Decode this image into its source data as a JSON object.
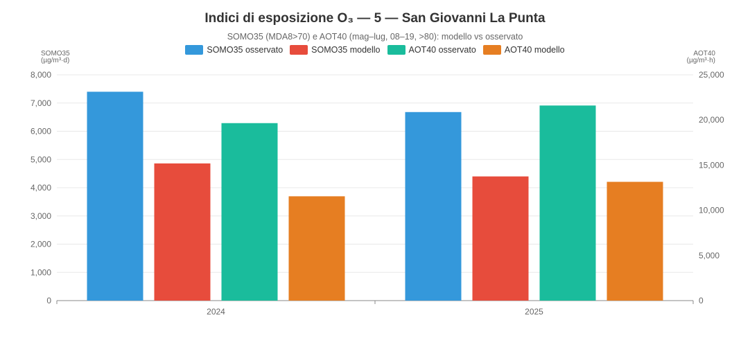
{
  "chart_data": {
    "type": "bar",
    "title": "Indici di esposizione O₃ — 5 — San Giovanni La Punta",
    "subtitle": "SOMO35 (MDA8>70) e AOT40 (mag–lug, 08–19, >80): modello vs osservato",
    "categories": [
      "2024",
      "2025"
    ],
    "y_left": {
      "label_line1": "SOMO35",
      "label_line2": "(µg/m³·d)",
      "range": [
        0,
        8000
      ],
      "ticks": [
        "0",
        "1,000",
        "2,000",
        "3,000",
        "4,000",
        "5,000",
        "6,000",
        "7,000",
        "8,000"
      ],
      "tick_values": [
        0,
        1000,
        2000,
        3000,
        4000,
        5000,
        6000,
        7000,
        8000
      ]
    },
    "y_right": {
      "label_line1": "AOT40",
      "label_line2": "(µg/m³·h)",
      "range": [
        0,
        25000
      ],
      "ticks": [
        "0",
        "5,000",
        "10,000",
        "15,000",
        "20,000",
        "25,000"
      ],
      "tick_values": [
        0,
        5000,
        10000,
        15000,
        20000,
        25000
      ]
    },
    "series": [
      {
        "name": "SOMO35 osservato",
        "axis": "left",
        "color": "#3498db",
        "values": [
          7400,
          6680
        ]
      },
      {
        "name": "SOMO35 modello",
        "axis": "left",
        "color": "#e74c3c",
        "values": [
          4860,
          4400
        ]
      },
      {
        "name": "AOT40 osservato",
        "axis": "right",
        "color": "#1abc9c",
        "values": [
          19650,
          21600
        ]
      },
      {
        "name": "AOT40 modello",
        "axis": "right",
        "color": "#e67e22",
        "values": [
          11550,
          13150
        ]
      }
    ],
    "grid": true,
    "legend_position": "top"
  }
}
